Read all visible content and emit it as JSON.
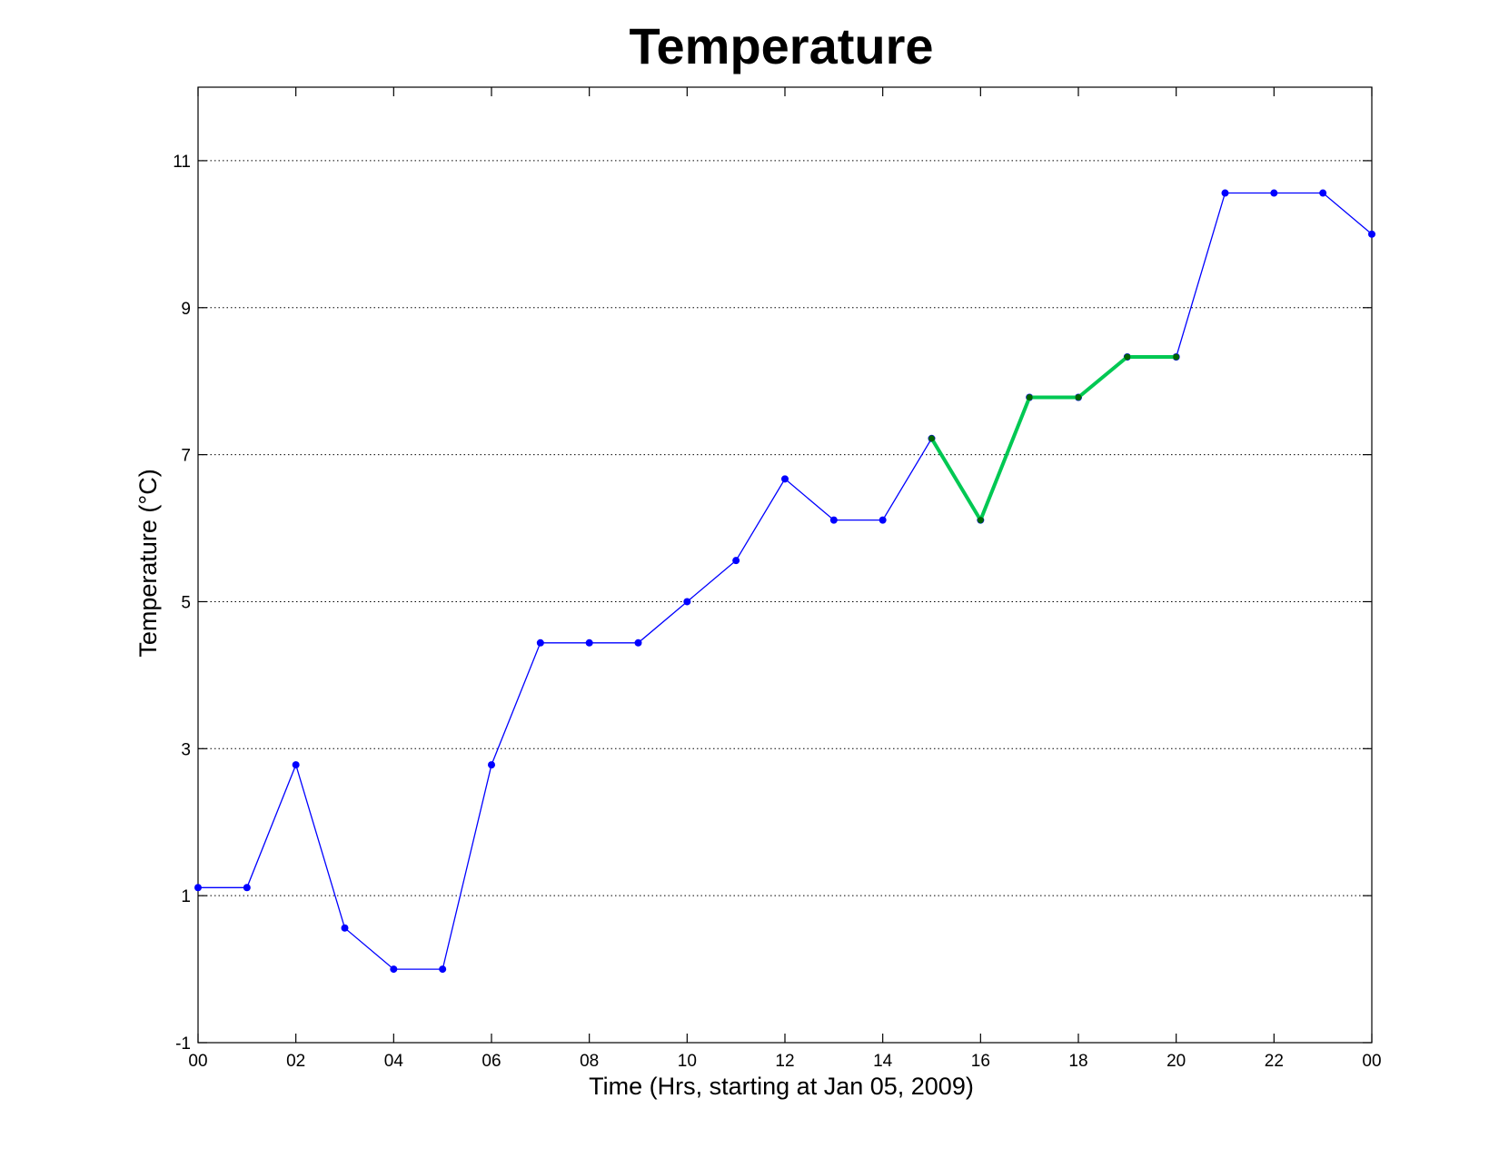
{
  "chart_data": {
    "type": "line",
    "title": "Temperature",
    "xlabel": "Time (Hrs, starting at Jan 05, 2009)",
    "ylabel": "Temperature (°C)",
    "xlim": [
      0,
      24
    ],
    "ylim": [
      -1,
      12
    ],
    "x_ticks": [
      "00",
      "02",
      "04",
      "06",
      "08",
      "10",
      "12",
      "14",
      "16",
      "18",
      "20",
      "22",
      "00"
    ],
    "y_ticks": [
      -1,
      1,
      3,
      5,
      7,
      9,
      11
    ],
    "grid": "y-dotted",
    "x": [
      0,
      1,
      2,
      3,
      4,
      5,
      6,
      7,
      8,
      9,
      10,
      11,
      12,
      13,
      14,
      15,
      16,
      17,
      18,
      19,
      20,
      21,
      22,
      23,
      24
    ],
    "series": [
      {
        "color": "#0000ff",
        "marker_color": "#0000ff",
        "values": [
          1.11,
          1.11,
          2.78,
          0.56,
          0,
          0,
          2.78,
          4.44,
          4.44,
          4.44,
          5.0,
          5.56,
          6.67,
          6.11,
          6.11,
          7.22,
          6.11,
          7.78,
          7.78,
          8.33,
          8.33,
          10.56,
          10.56,
          10.56,
          10.0
        ]
      },
      {
        "color": "#00c853",
        "marker_color": "#006400",
        "x": [
          15,
          16,
          17,
          18,
          19,
          20
        ],
        "values": [
          7.22,
          6.11,
          7.78,
          7.78,
          8.33,
          8.33
        ]
      }
    ]
  }
}
